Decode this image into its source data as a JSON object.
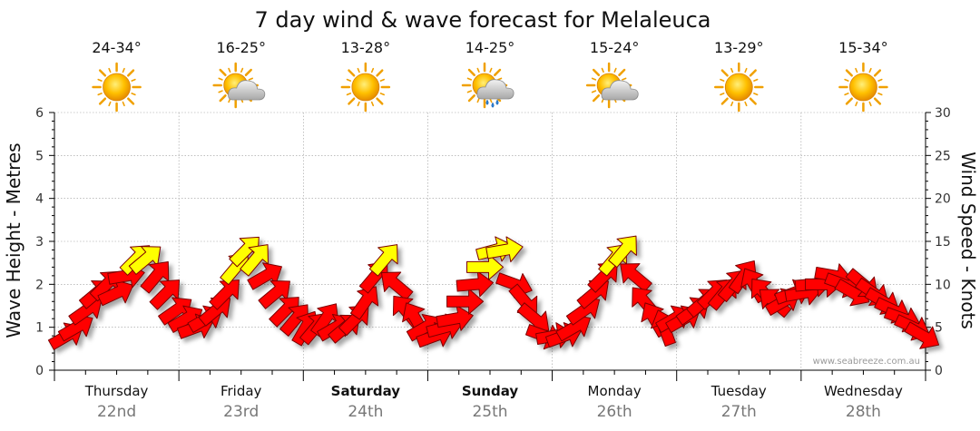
{
  "chart_data": {
    "type": "scatter",
    "title": "7 day wind & wave forecast for Melaleuca",
    "ylabel_left": "Wave Height - Metres",
    "ylabel_right": "Wind Speed - Knots",
    "ylim_left": [
      0,
      6
    ],
    "ylim_right": [
      0,
      30
    ],
    "yticks_left": [
      "0",
      "1",
      "2",
      "3",
      "4",
      "5",
      "6"
    ],
    "yticks_right": [
      "0",
      "5",
      "10",
      "15",
      "20",
      "25",
      "30"
    ],
    "credit": "www.seabreeze.com.au",
    "days": [
      {
        "name": "Thursday",
        "date": "22nd",
        "temp": "24-34°",
        "weather": "sunny",
        "bold": false
      },
      {
        "name": "Friday",
        "date": "23rd",
        "temp": "16-25°",
        "weather": "partly-cloudy",
        "bold": false
      },
      {
        "name": "Saturday",
        "date": "24th",
        "temp": "13-28°",
        "weather": "sunny",
        "bold": true
      },
      {
        "name": "Sunday",
        "date": "25th",
        "temp": "14-25°",
        "weather": "showers",
        "bold": true
      },
      {
        "name": "Monday",
        "date": "26th",
        "temp": "15-24°",
        "weather": "partly-cloudy",
        "bold": false
      },
      {
        "name": "Tuesday",
        "date": "27th",
        "temp": "13-29°",
        "weather": "sunny",
        "bold": false
      },
      {
        "name": "Wednesday",
        "date": "28th",
        "temp": "15-34°",
        "weather": "sunny",
        "bold": false
      }
    ],
    "colors": {
      "strong_wind": "#ff0000",
      "light_wind": "#ffff00",
      "outline": "#7a0000",
      "grid": "#999999"
    },
    "wind_series": {
      "name": "Wind",
      "unit": "knots",
      "x_days": [
        0.1,
        0.18,
        0.26,
        0.34,
        0.42,
        0.5,
        0.58,
        0.66,
        0.74,
        0.82,
        0.9,
        0.98,
        1.06,
        1.14,
        1.22,
        1.3,
        1.38,
        1.46,
        1.54,
        1.62,
        1.7,
        1.78,
        1.86,
        1.94,
        2.02,
        2.1,
        2.18,
        2.26,
        2.34,
        2.42,
        2.5,
        2.58,
        2.66,
        2.74,
        2.82,
        2.9,
        2.98,
        3.06,
        3.14,
        3.22,
        3.3,
        3.38,
        3.46,
        3.54,
        3.62,
        3.7,
        3.78,
        3.86,
        3.94,
        4.02,
        4.1,
        4.18,
        4.26,
        4.34,
        4.42,
        4.5,
        4.58,
        4.66,
        4.74,
        4.82,
        4.9,
        4.98,
        5.06,
        5.14,
        5.22,
        5.3,
        5.38,
        5.46,
        5.54,
        5.62,
        5.7,
        5.78,
        5.86,
        5.94,
        6.02,
        6.1,
        6.18,
        6.26,
        6.34,
        6.42,
        6.5,
        6.58,
        6.66,
        6.74,
        6.82,
        6.9,
        6.98
      ],
      "knots": [
        4,
        5,
        7,
        9,
        10,
        9,
        11,
        13,
        13,
        11,
        9,
        7,
        6,
        5,
        6,
        7,
        9,
        12,
        14,
        13,
        11,
        9,
        7,
        6,
        5,
        5,
        6,
        5,
        5,
        6,
        8,
        11,
        13,
        10,
        7,
        6,
        5,
        4,
        5,
        6,
        8,
        10,
        12,
        14,
        14,
        10,
        8,
        6,
        4,
        4,
        4,
        5,
        7,
        9,
        11,
        13,
        14,
        11,
        8,
        6,
        5,
        6,
        6,
        7,
        8,
        9,
        9,
        10,
        11,
        10,
        9,
        8,
        8,
        9,
        9,
        10,
        10,
        11,
        10,
        9,
        10,
        9,
        8,
        7,
        6,
        5,
        4
      ],
      "direction_deg": [
        60,
        60,
        55,
        50,
        45,
        65,
        80,
        45,
        50,
        40,
        45,
        55,
        60,
        70,
        60,
        50,
        45,
        40,
        45,
        40,
        60,
        50,
        45,
        40,
        30,
        40,
        35,
        60,
        50,
        45,
        35,
        40,
        40,
        310,
        320,
        330,
        60,
        70,
        75,
        80,
        90,
        85,
        90,
        75,
        80,
        110,
        140,
        130,
        110,
        80,
        70,
        60,
        55,
        50,
        45,
        40,
        40,
        310,
        320,
        330,
        340,
        60,
        60,
        55,
        50,
        45,
        40,
        40,
        35,
        330,
        320,
        310,
        60,
        70,
        80,
        85,
        90,
        100,
        110,
        120,
        130,
        125,
        120,
        115,
        110,
        115,
        120
      ]
    }
  }
}
